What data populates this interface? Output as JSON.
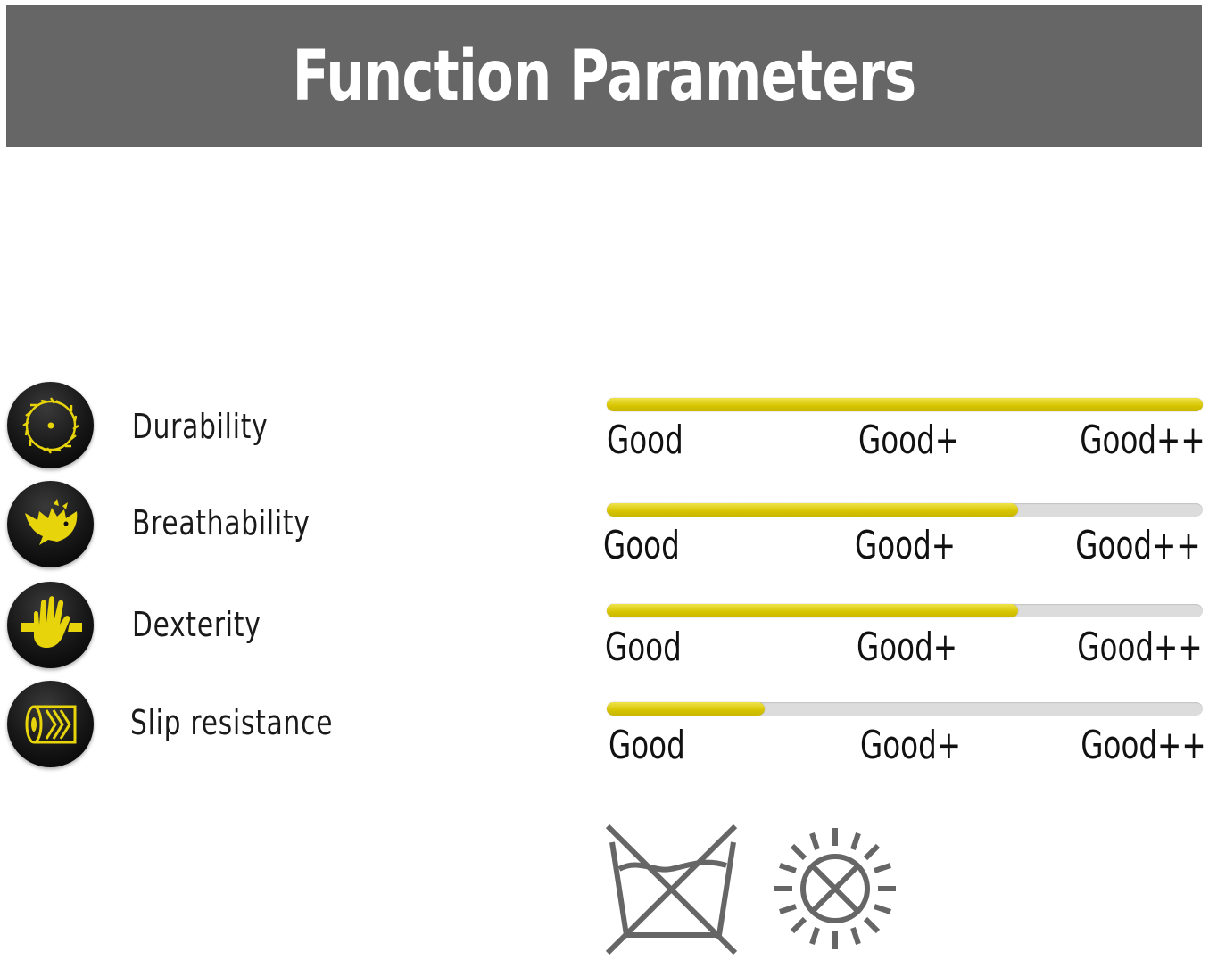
{
  "header": {
    "title": "Function Parameters",
    "background": "#666666"
  },
  "accent_color": "#d6c400",
  "parameters": [
    {
      "label": "Durability",
      "icon": "circular-saw-blade-icon",
      "level": 1.0,
      "scale": [
        "Good",
        "Good+",
        "Good++"
      ]
    },
    {
      "label": "Breathability",
      "icon": "bird-icon",
      "level": 0.69,
      "scale": [
        "Good",
        "Good+",
        "Good++"
      ]
    },
    {
      "label": "Dexterity",
      "icon": "hand-icon",
      "level": 0.69,
      "scale": [
        "Good",
        "Good+",
        "Good++"
      ]
    },
    {
      "label": "Slip resistance",
      "icon": "slip-surface-icon",
      "level": 0.265,
      "scale": [
        "Good",
        "Good+",
        "Good++"
      ]
    }
  ],
  "care_symbols": [
    {
      "icon": "do-not-wash-icon"
    },
    {
      "icon": "do-not-dry-in-sun-icon"
    }
  ]
}
